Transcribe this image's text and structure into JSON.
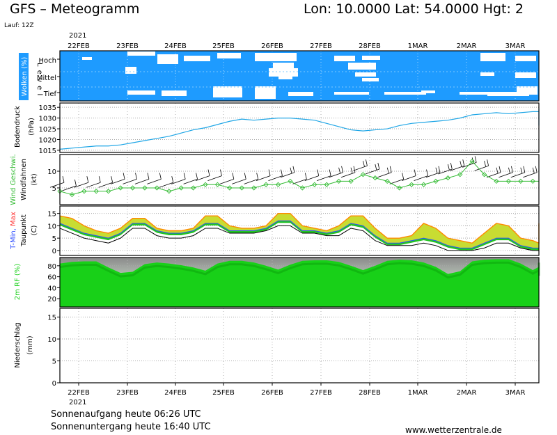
{
  "header": {
    "title": "GFS – Meteogramm",
    "coords": "Lon: 10.0000  Lat: 54.0000  Hgt: 2",
    "run": "Lauf: 12Z",
    "year": "2021"
  },
  "footer": {
    "sunrise": "Sonnenaufgang heute 06:26 UTC",
    "sunset": "Sonnenuntergang heute 16:40 UTC",
    "site": "www.wetterzentrale.de"
  },
  "colors": {
    "cloud_bg": "#1e9bff",
    "cloud": "#ffffff",
    "pressure": "#1fa6e6",
    "wind": "#33bb33",
    "tmin": "#3050ff",
    "tmax": "#ff3030",
    "taupunkt": "#000000",
    "rf": "#18d018"
  },
  "chart_data": {
    "type": "line",
    "x_labels": [
      "22FEB",
      "23FEB",
      "24FEB",
      "25FEB",
      "26FEB",
      "27FEB",
      "28FEB",
      "1MAR",
      "2MAR",
      "3MAR"
    ],
    "x_step_hours": 6,
    "panels": [
      {
        "id": "wolken",
        "ylabel": "Wolken (%)",
        "level_label": "L e v e l",
        "levels": [
          "Hoch",
          "Mittel",
          "Tief"
        ]
      },
      {
        "id": "bodendruck",
        "ylabel": "Bodendruck",
        "unit": "(hPa)",
        "ylim": [
          1014,
          1037
        ],
        "ticks": [
          1015,
          1020,
          1025,
          1030,
          1035
        ],
        "series": [
          {
            "name": "Bodendruck",
            "values": [
              1015.5,
              1016,
              1016.5,
              1017,
              1017,
              1017.5,
              1018.5,
              1019.5,
              1020.5,
              1021.5,
              1023,
              1024.5,
              1025.5,
              1027,
              1028.5,
              1029.5,
              1029,
              1029.5,
              1030,
              1030,
              1029.5,
              1029,
              1027.5,
              1026,
              1024.5,
              1024,
              1024.5,
              1025,
              1026.5,
              1027.5,
              1028,
              1028.5,
              1029,
              1030,
              1031.5,
              1032,
              1032.5,
              1032,
              1032.5,
              1033,
              1033,
              1032.5,
              1032.5,
              1033,
              1033.5,
              1034,
              1034.5,
              1034,
              1034,
              1033.5,
              1032.5,
              1031,
              1030,
              1029.5,
              1027.5,
              1026.5,
              1027.5,
              1028,
              1029,
              1030.5,
              1031
            ]
          }
        ]
      },
      {
        "id": "wind",
        "ylabel": "Wind Geschwi.",
        "ylabel2": "Windfahnen",
        "unit": "(kt)",
        "ylim": [
          0,
          15
        ],
        "ticks": [
          5,
          10
        ],
        "series": [
          {
            "name": "Wind Geschwi.",
            "values": [
              4,
              3,
              4,
              4,
              4,
              5,
              5,
              5,
              5,
              4,
              5,
              5,
              6,
              6,
              5,
              5,
              5,
              6,
              6,
              7,
              5,
              6,
              6,
              7,
              7,
              9,
              8,
              7,
              5,
              6,
              6,
              7,
              8,
              9,
              13,
              9,
              7,
              7,
              7,
              7,
              7,
              7,
              4,
              4,
              4,
              4,
              4,
              4,
              3,
              1,
              2,
              2,
              3,
              3,
              4,
              4,
              4,
              4,
              4,
              5,
              2,
              3,
              4,
              6,
              7
            ]
          }
        ]
      },
      {
        "id": "temperatur",
        "ylabel": "T-Min, Max",
        "ylabel_tmin": "T-Min,",
        "ylabel_tmax": "Max",
        "ylabel2": "Taupunkt",
        "unit": "(C)",
        "ylim": [
          -2,
          18
        ],
        "ticks": [
          0,
          5,
          10,
          15
        ],
        "series": [
          {
            "name": "T-Max",
            "values": [
              14,
              13,
              10,
              8,
              7,
              9,
              13,
              13,
              9,
              8,
              8,
              9,
              14,
              14,
              10,
              9,
              9,
              10,
              15,
              15,
              10,
              9,
              8,
              10,
              14,
              14,
              9,
              5,
              5,
              6,
              11,
              9,
              5,
              4,
              3,
              7,
              11,
              10,
              5,
              4,
              3,
              4,
              11,
              11,
              5,
              4,
              3,
              4,
              11,
              11,
              5,
              4,
              3,
              4,
              11,
              11,
              6,
              4,
              3,
              6,
              11,
              11,
              5,
              4,
              3,
              8
            ]
          },
          {
            "name": "T-Min",
            "values": [
              11,
              9,
              7,
              6,
              5,
              7,
              11,
              11,
              8,
              7,
              7,
              8,
              11,
              11,
              8,
              8,
              8,
              9,
              12,
              12,
              8,
              8,
              7,
              8,
              11,
              10,
              6,
              3,
              3,
              4,
              5,
              4,
              2,
              1,
              1,
              3,
              5,
              5,
              2,
              1,
              1,
              1,
              5,
              5,
              2,
              1,
              1,
              1,
              5,
              5,
              2,
              1,
              0,
              1,
              5,
              5,
              2,
              1,
              0,
              1,
              5,
              5,
              2,
              1,
              0,
              2
            ]
          },
          {
            "name": "Taupunkt",
            "values": [
              9,
              7,
              5,
              4,
              3,
              5,
              9,
              9,
              6,
              5,
              5,
              6,
              9,
              9,
              7,
              7,
              7,
              8,
              10,
              10,
              7,
              7,
              6,
              6,
              9,
              8,
              4,
              2,
              2,
              2,
              3,
              2,
              0,
              0,
              0,
              1,
              3,
              3,
              1,
              0,
              0,
              0,
              3,
              3,
              0,
              0,
              0,
              0,
              3,
              3,
              0,
              0,
              -1,
              0,
              3,
              3,
              0,
              0,
              -1,
              0,
              3,
              3,
              1,
              0,
              0,
              1
            ]
          }
        ]
      },
      {
        "id": "rf",
        "ylabel": "2m RF (%)",
        "ylim": [
          5,
          95
        ],
        "ticks": [
          20,
          40,
          60,
          80
        ],
        "series": [
          {
            "name": "2m RF (%)",
            "values": [
              84,
              87,
              88,
              88,
              77,
              67,
              69,
              83,
              86,
              84,
              81,
              77,
              71,
              84,
              89,
              89,
              86,
              80,
              73,
              82,
              89,
              90,
              90,
              87,
              80,
              72,
              80,
              89,
              91,
              90,
              86,
              78,
              65,
              70,
              88,
              91,
              92,
              92,
              84,
              72,
              78,
              88,
              90,
              90,
              84,
              74,
              71,
              84,
              88,
              88,
              80,
              70,
              70,
              84,
              88,
              88,
              79,
              68,
              70,
              84,
              89,
              89,
              84,
              72,
              80,
              90,
              92
            ]
          }
        ]
      },
      {
        "id": "niederschlag",
        "ylabel": "Niederschlag",
        "unit": "(mm)",
        "ylim": [
          0,
          17
        ],
        "ticks": [
          0,
          5,
          10,
          15
        ]
      }
    ]
  }
}
